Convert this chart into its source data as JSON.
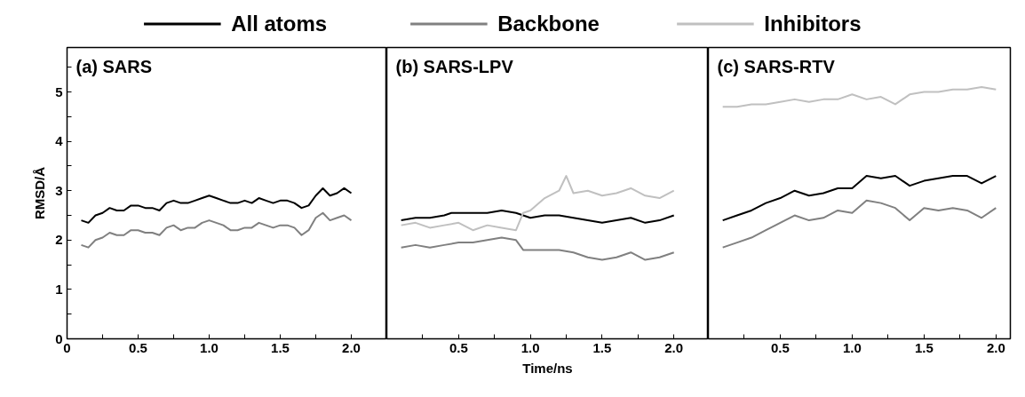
{
  "chart_data": [
    {
      "type": "line",
      "title": "(a) SARS",
      "ylabel": "RMSD/Å",
      "xlim": [
        0,
        2.25
      ],
      "ylim": [
        0,
        5.9
      ],
      "xticks": [
        0,
        {
          "value": 0.25,
          "label": null
        },
        {
          "value": 0.5,
          "label": "0.5"
        },
        {
          "value": 0.75,
          "label": null
        },
        {
          "value": 1.0,
          "label": "1.0"
        },
        {
          "value": 1.25,
          "label": null
        },
        {
          "value": 1.5,
          "label": "1.5"
        },
        {
          "value": 1.75,
          "label": null
        },
        {
          "value": 2.0,
          "label": "2.0"
        }
      ],
      "yticks": [
        0,
        {
          "value": 0.5,
          "label": null
        },
        1,
        {
          "value": 1.5,
          "label": null
        },
        2,
        {
          "value": 2.5,
          "label": null
        },
        3,
        {
          "value": 3.5,
          "label": null
        },
        4,
        {
          "value": 4.5,
          "label": null
        },
        5,
        {
          "value": 5.5,
          "label": null
        }
      ],
      "grid": false,
      "legend": false,
      "marker": "none",
      "line_style": "solid",
      "x": [
        0.1,
        0.15,
        0.2,
        0.25,
        0.3,
        0.35,
        0.4,
        0.45,
        0.5,
        0.55,
        0.6,
        0.65,
        0.7,
        0.75,
        0.8,
        0.85,
        0.9,
        0.95,
        1.0,
        1.05,
        1.1,
        1.15,
        1.2,
        1.25,
        1.3,
        1.35,
        1.4,
        1.45,
        1.5,
        1.55,
        1.6,
        1.65,
        1.7,
        1.75,
        1.8,
        1.85,
        1.9,
        1.95,
        2.0
      ],
      "series": [
        {
          "color": "#000000",
          "values": [
            2.4,
            2.35,
            2.5,
            2.55,
            2.65,
            2.6,
            2.6,
            2.7,
            2.7,
            2.65,
            2.65,
            2.6,
            2.75,
            2.8,
            2.75,
            2.75,
            2.8,
            2.85,
            2.9,
            2.85,
            2.8,
            2.75,
            2.75,
            2.8,
            2.75,
            2.85,
            2.8,
            2.75,
            2.8,
            2.8,
            2.75,
            2.65,
            2.7,
            2.9,
            3.05,
            2.9,
            2.95,
            3.05,
            2.95
          ]
        },
        {
          "color": "#808080",
          "values": [
            1.9,
            1.85,
            2.0,
            2.05,
            2.15,
            2.1,
            2.1,
            2.2,
            2.2,
            2.15,
            2.15,
            2.1,
            2.25,
            2.3,
            2.2,
            2.25,
            2.25,
            2.35,
            2.4,
            2.35,
            2.3,
            2.2,
            2.2,
            2.25,
            2.25,
            2.35,
            2.3,
            2.25,
            2.3,
            2.3,
            2.25,
            2.1,
            2.2,
            2.45,
            2.55,
            2.4,
            2.45,
            2.5,
            2.4
          ]
        }
      ]
    },
    {
      "type": "line",
      "title": "(b) SARS-LPV",
      "xlabel": "Time/ns",
      "xlim": [
        0,
        2.24
      ],
      "ylim": [
        0,
        5.9
      ],
      "xticks": [
        {
          "value": 0.25,
          "label": null
        },
        {
          "value": 0.5,
          "label": "0.5"
        },
        {
          "value": 0.75,
          "label": null
        },
        {
          "value": 1.0,
          "label": "1.0"
        },
        {
          "value": 1.25,
          "label": null
        },
        {
          "value": 1.5,
          "label": "1.5"
        },
        {
          "value": 1.75,
          "label": null
        },
        {
          "value": 2.0,
          "label": "2.0"
        }
      ],
      "tick_labels": "x",
      "grid": false,
      "legend": "top",
      "marker": "none",
      "line_style": "solid",
      "series": [
        {
          "name": "All atoms",
          "color": "#000000",
          "x": [
            0.1,
            0.2,
            0.3,
            0.4,
            0.45,
            0.5,
            0.6,
            0.7,
            0.8,
            0.9,
            1.0,
            1.1,
            1.2,
            1.3,
            1.4,
            1.5,
            1.6,
            1.7,
            1.8,
            1.9,
            2.0
          ],
          "values": [
            2.4,
            2.45,
            2.45,
            2.5,
            2.55,
            2.55,
            2.55,
            2.55,
            2.6,
            2.55,
            2.45,
            2.5,
            2.5,
            2.45,
            2.4,
            2.35,
            2.4,
            2.45,
            2.35,
            2.4,
            2.5
          ]
        },
        {
          "name": "Backbone",
          "color": "#808080",
          "x": [
            0.1,
            0.2,
            0.3,
            0.4,
            0.5,
            0.6,
            0.7,
            0.8,
            0.9,
            0.95,
            1.0,
            1.1,
            1.2,
            1.3,
            1.4,
            1.5,
            1.6,
            1.7,
            1.8,
            1.9,
            2.0
          ],
          "values": [
            1.85,
            1.9,
            1.85,
            1.9,
            1.95,
            1.95,
            2.0,
            2.05,
            2.0,
            1.8,
            1.8,
            1.8,
            1.8,
            1.75,
            1.65,
            1.6,
            1.65,
            1.75,
            1.6,
            1.65,
            1.75
          ]
        },
        {
          "name": "Inhibitors",
          "color": "#c0c0c0",
          "x": [
            0.1,
            0.2,
            0.3,
            0.4,
            0.5,
            0.6,
            0.7,
            0.8,
            0.9,
            0.95,
            1.0,
            1.1,
            1.2,
            1.25,
            1.3,
            1.4,
            1.5,
            1.6,
            1.7,
            1.8,
            1.9,
            2.0
          ],
          "values": [
            2.3,
            2.35,
            2.25,
            2.3,
            2.35,
            2.2,
            2.3,
            2.25,
            2.2,
            2.55,
            2.6,
            2.85,
            3.0,
            3.3,
            2.95,
            3.0,
            2.9,
            2.95,
            3.05,
            2.9,
            2.85,
            3.0
          ]
        }
      ]
    },
    {
      "type": "line",
      "title": "(c) SARS-RTV",
      "xlim": [
        0,
        2.1
      ],
      "ylim": [
        0,
        5.9
      ],
      "xticks": [
        {
          "value": 0.25,
          "label": null
        },
        {
          "value": 0.5,
          "label": "0.5"
        },
        {
          "value": 0.75,
          "label": null
        },
        {
          "value": 1.0,
          "label": "1.0"
        },
        {
          "value": 1.25,
          "label": null
        },
        {
          "value": 1.5,
          "label": "1.5"
        },
        {
          "value": 1.75,
          "label": null
        },
        {
          "value": 2.0,
          "label": "2.0"
        }
      ],
      "tick_labels": "x",
      "grid": false,
      "legend": false,
      "marker": "none",
      "line_style": "solid",
      "x": [
        0.1,
        0.2,
        0.3,
        0.4,
        0.5,
        0.6,
        0.7,
        0.8,
        0.9,
        1.0,
        1.1,
        1.2,
        1.3,
        1.4,
        1.5,
        1.6,
        1.7,
        1.8,
        1.9,
        2.0
      ],
      "series": [
        {
          "color": "#c0c0c0",
          "values": [
            4.7,
            4.7,
            4.75,
            4.75,
            4.8,
            4.85,
            4.8,
            4.85,
            4.85,
            4.95,
            4.85,
            4.9,
            4.75,
            4.95,
            5.0,
            5.0,
            5.05,
            5.05,
            5.1,
            5.05
          ]
        },
        {
          "color": "#000000",
          "values": [
            2.4,
            2.5,
            2.6,
            2.75,
            2.85,
            3.0,
            2.9,
            2.95,
            3.05,
            3.05,
            3.3,
            3.25,
            3.3,
            3.1,
            3.2,
            3.25,
            3.3,
            3.3,
            3.15,
            3.3
          ]
        },
        {
          "color": "#808080",
          "values": [
            1.85,
            1.95,
            2.05,
            2.2,
            2.35,
            2.5,
            2.4,
            2.45,
            2.6,
            2.55,
            2.8,
            2.75,
            2.65,
            2.4,
            2.65,
            2.6,
            2.65,
            2.6,
            2.45,
            2.65
          ]
        }
      ]
    }
  ]
}
